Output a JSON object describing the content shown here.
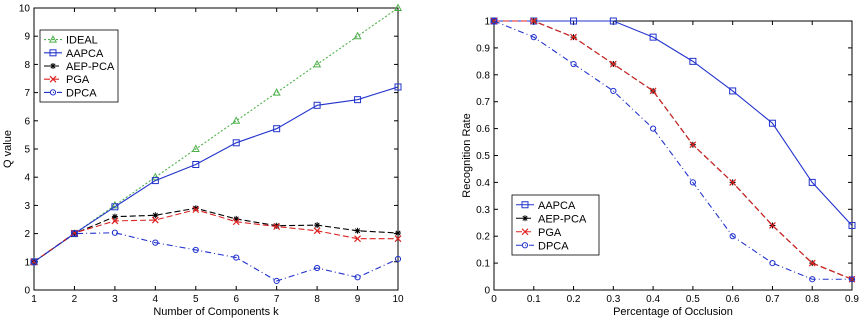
{
  "chart_data": [
    {
      "type": "line",
      "title": "",
      "xlabel": "Number of Components k",
      "ylabel": "Q value",
      "xlim": [
        1,
        10
      ],
      "ylim": [
        0,
        10
      ],
      "xticks": [
        1,
        2,
        3,
        4,
        5,
        6,
        7,
        8,
        9,
        10
      ],
      "yticks": [
        0,
        1,
        2,
        3,
        4,
        5,
        6,
        7,
        8,
        9,
        10
      ],
      "grid": false,
      "legend_position": "top-left",
      "series": [
        {
          "name": "IDEAL",
          "color": "#4daf4a",
          "dash": "2,2",
          "marker": "triangle",
          "x": [
            1,
            2,
            3,
            4,
            5,
            6,
            7,
            8,
            9,
            10
          ],
          "y": [
            1,
            2,
            3,
            4,
            5,
            6,
            7,
            8,
            9,
            10
          ]
        },
        {
          "name": "AAPCA",
          "color": "#2233cc",
          "dash": "",
          "marker": "square",
          "x": [
            1,
            2,
            3,
            4,
            5,
            6,
            7,
            8,
            9,
            10
          ],
          "y": [
            1.0,
            2.0,
            2.95,
            3.88,
            4.45,
            5.22,
            5.72,
            6.55,
            6.75,
            7.2
          ]
        },
        {
          "name": "AEP-PCA",
          "color": "#000000",
          "dash": "6,3",
          "marker": "star",
          "x": [
            1,
            2,
            3,
            4,
            5,
            6,
            7,
            8,
            9,
            10
          ],
          "y": [
            1.0,
            2.0,
            2.6,
            2.65,
            2.9,
            2.52,
            2.28,
            2.3,
            2.1,
            2.02
          ]
        },
        {
          "name": "PGA",
          "color": "#dd2222",
          "dash": "6,3",
          "marker": "x",
          "x": [
            1,
            2,
            3,
            4,
            5,
            6,
            7,
            8,
            9,
            10
          ],
          "y": [
            1.0,
            2.02,
            2.45,
            2.48,
            2.85,
            2.42,
            2.25,
            2.1,
            1.82,
            1.82
          ]
        },
        {
          "name": "DPCA",
          "color": "#2233cc",
          "dash": "6,3,1,3",
          "marker": "circle",
          "x": [
            1,
            2,
            3,
            4,
            5,
            6,
            7,
            8,
            9,
            10
          ],
          "y": [
            1.0,
            2.0,
            2.03,
            1.68,
            1.42,
            1.15,
            0.32,
            0.78,
            0.45,
            1.1
          ]
        }
      ]
    },
    {
      "type": "line",
      "title": "",
      "xlabel": "Percentage of Occlusion",
      "ylabel": "Recognition Rate",
      "xlim": [
        0,
        0.9
      ],
      "ylim": [
        0,
        1
      ],
      "xticks": [
        0,
        0.1,
        0.2,
        0.3,
        0.4,
        0.5,
        0.6,
        0.7,
        0.8,
        0.9
      ],
      "xticklabels": [
        "0",
        "0.1",
        "0.2",
        "0.3",
        "0.4",
        "0.5",
        "0.6",
        "0.7",
        "0.8",
        "0.9"
      ],
      "yticks": [
        0,
        0.1,
        0.2,
        0.3,
        0.4,
        0.5,
        0.6,
        0.7,
        0.8,
        0.9,
        1
      ],
      "yticklabels": [
        "0",
        "0.1",
        "0.2",
        "0.3",
        "0.4",
        "0.5",
        "0.6",
        "0.7",
        "0.8",
        "0.9",
        "1"
      ],
      "grid": false,
      "legend_position": "bottom-left",
      "series": [
        {
          "name": "AAPCA",
          "color": "#2233cc",
          "dash": "",
          "marker": "square",
          "x": [
            0,
            0.1,
            0.2,
            0.3,
            0.4,
            0.5,
            0.6,
            0.7,
            0.8,
            0.9
          ],
          "y": [
            1.0,
            1.0,
            1.0,
            1.0,
            0.94,
            0.85,
            0.74,
            0.62,
            0.4,
            0.24
          ]
        },
        {
          "name": "AEP-PCA",
          "color": "#000000",
          "dash": "6,3",
          "marker": "star",
          "x": [
            0,
            0.1,
            0.2,
            0.3,
            0.4,
            0.5,
            0.6,
            0.7,
            0.8,
            0.9
          ],
          "y": [
            1.0,
            1.0,
            0.94,
            0.84,
            0.74,
            0.54,
            0.4,
            0.24,
            0.1,
            0.04
          ]
        },
        {
          "name": "PGA",
          "color": "#dd2222",
          "dash": "6,3",
          "marker": "x",
          "x": [
            0,
            0.1,
            0.2,
            0.3,
            0.4,
            0.5,
            0.6,
            0.7,
            0.8,
            0.9
          ],
          "y": [
            1.0,
            1.0,
            0.94,
            0.84,
            0.74,
            0.54,
            0.4,
            0.24,
            0.1,
            0.04
          ]
        },
        {
          "name": "DPCA",
          "color": "#2233cc",
          "dash": "6,3,1,3",
          "marker": "circle",
          "x": [
            0,
            0.1,
            0.2,
            0.3,
            0.4,
            0.5,
            0.6,
            0.7,
            0.8,
            0.9
          ],
          "y": [
            1.0,
            0.94,
            0.84,
            0.74,
            0.6,
            0.4,
            0.2,
            0.1,
            0.04,
            0.04
          ]
        }
      ]
    }
  ]
}
